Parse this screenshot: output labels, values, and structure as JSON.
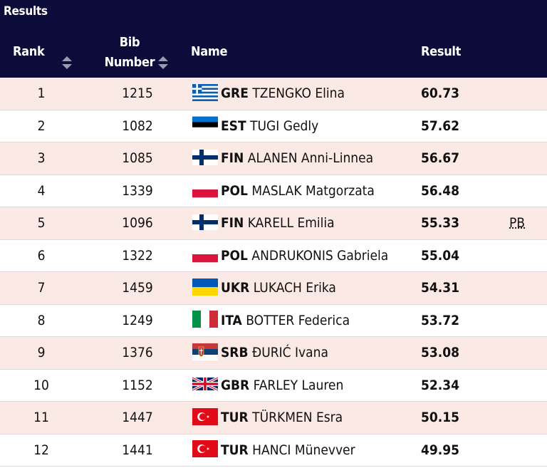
{
  "section_title": "Results",
  "columns": {
    "rank": "Rank",
    "bib_line1": "Bib",
    "bib_line2": "Number",
    "name": "Name",
    "result": "Result"
  },
  "icons": {
    "sort": "sort-icon"
  },
  "colors": {
    "header_bg": "#0c0c3a",
    "row_alt_bg": "#fbe9e5"
  },
  "rows": [
    {
      "rank": "1",
      "bib": "1215",
      "flag": "greece-flag-icon",
      "country": "GRE",
      "name": "TZENGKO Elina",
      "result": "60.73",
      "note": ""
    },
    {
      "rank": "2",
      "bib": "1082",
      "flag": "estonia-flag-icon",
      "country": "EST",
      "name": "TUGI Gedly",
      "result": "57.62",
      "note": ""
    },
    {
      "rank": "3",
      "bib": "1085",
      "flag": "finland-flag-icon",
      "country": "FIN",
      "name": "ALANEN Anni-Linnea",
      "result": "56.67",
      "note": ""
    },
    {
      "rank": "4",
      "bib": "1339",
      "flag": "poland-flag-icon",
      "country": "POL",
      "name": "MASLAK Matgorzata",
      "result": "56.48",
      "note": ""
    },
    {
      "rank": "5",
      "bib": "1096",
      "flag": "finland-flag-icon",
      "country": "FIN",
      "name": "KARELL Emilia",
      "result": "55.33",
      "note": "PB"
    },
    {
      "rank": "6",
      "bib": "1322",
      "flag": "poland-flag-icon",
      "country": "POL",
      "name": "ANDRUKONIS Gabriela",
      "result": "55.04",
      "note": ""
    },
    {
      "rank": "7",
      "bib": "1459",
      "flag": "ukraine-flag-icon",
      "country": "UKR",
      "name": "LUKACH Erika",
      "result": "54.31",
      "note": ""
    },
    {
      "rank": "8",
      "bib": "1249",
      "flag": "italy-flag-icon",
      "country": "ITA",
      "name": "BOTTER Federica",
      "result": "53.72",
      "note": ""
    },
    {
      "rank": "9",
      "bib": "1376",
      "flag": "serbia-flag-icon",
      "country": "SRB",
      "name": "ĐURIĆ Ivana",
      "result": "53.08",
      "note": ""
    },
    {
      "rank": "10",
      "bib": "1152",
      "flag": "great-britain-flag-icon",
      "country": "GBR",
      "name": "FARLEY Lauren",
      "result": "52.34",
      "note": ""
    },
    {
      "rank": "11",
      "bib": "1447",
      "flag": "turkey-flag-icon",
      "country": "TUR",
      "name": "TÜRKMEN Esra",
      "result": "50.15",
      "note": ""
    },
    {
      "rank": "12",
      "bib": "1441",
      "flag": "turkey-flag-icon",
      "country": "TUR",
      "name": "HANCI Münevver",
      "result": "49.95",
      "note": ""
    }
  ]
}
